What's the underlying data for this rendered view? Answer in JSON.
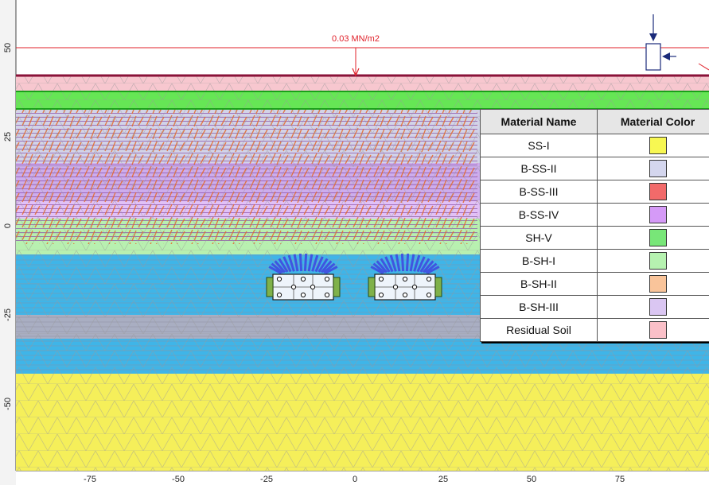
{
  "load": {
    "label": "0.03 MN/m2",
    "color": "#e0202a"
  },
  "axes": {
    "x_ticks": [
      "-75",
      "-50",
      "-25",
      "0",
      "25",
      "50",
      "75"
    ],
    "y_ticks": [
      "50",
      "25",
      "0",
      "-25",
      "-50"
    ]
  },
  "layers": [
    {
      "name": "Residual Soil",
      "color": "#f7c7cf"
    },
    {
      "name": "SH-V",
      "color": "#66e655"
    },
    {
      "name": "B-SS-II",
      "color": "#d2d3e8"
    },
    {
      "name": "B-SS-IV",
      "color": "#c98ef0"
    },
    {
      "name": "B-SH-I",
      "color": "#b8f0b0"
    },
    {
      "name": "B-SS-III",
      "color": "#f0aaa8"
    },
    {
      "name": "SS-I",
      "color": "#f5ef5a"
    }
  ],
  "water_color": "#3fb5e8",
  "bolt_color": "#3f55e0",
  "legend": {
    "headers": [
      "Material Name",
      "Material Color"
    ],
    "rows": [
      {
        "name": "SS-I",
        "color": "#f7f752"
      },
      {
        "name": "B-SS-II",
        "color": "#d4d6ee"
      },
      {
        "name": "B-SS-III",
        "color": "#f26a6a"
      },
      {
        "name": "B-SS-IV",
        "color": "#d59af7"
      },
      {
        "name": "SH-V",
        "color": "#78e678"
      },
      {
        "name": "B-SH-I",
        "color": "#b6f2b0"
      },
      {
        "name": "B-SH-II",
        "color": "#f9c49a"
      },
      {
        "name": "B-SH-III",
        "color": "#dac6f2"
      },
      {
        "name": "Residual Soil",
        "color": "#fac0c8"
      }
    ]
  }
}
